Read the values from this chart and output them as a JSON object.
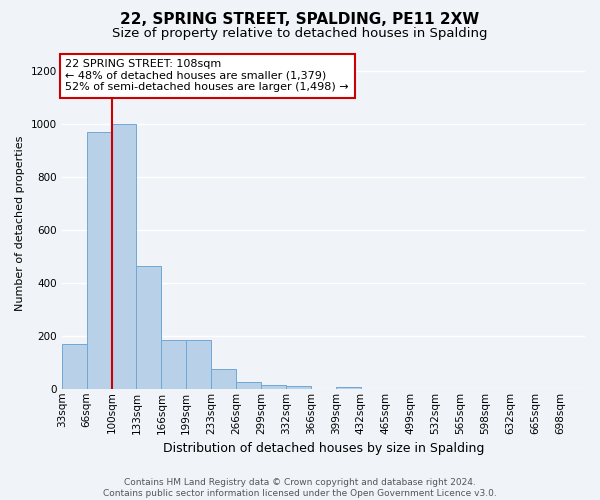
{
  "title": "22, SPRING STREET, SPALDING, PE11 2XW",
  "subtitle": "Size of property relative to detached houses in Spalding",
  "xlabel": "Distribution of detached houses by size in Spalding",
  "ylabel": "Number of detached properties",
  "bin_labels": [
    "33sqm",
    "66sqm",
    "100sqm",
    "133sqm",
    "166sqm",
    "199sqm",
    "233sqm",
    "266sqm",
    "299sqm",
    "332sqm",
    "366sqm",
    "399sqm",
    "432sqm",
    "465sqm",
    "499sqm",
    "532sqm",
    "565sqm",
    "598sqm",
    "632sqm",
    "665sqm",
    "698sqm"
  ],
  "num_bins": 21,
  "bar_heights": [
    170,
    970,
    1000,
    465,
    185,
    185,
    75,
    25,
    15,
    10,
    0,
    5,
    0,
    0,
    0,
    0,
    0,
    0,
    0,
    0,
    0
  ],
  "bar_color": "#b8d0e8",
  "bar_edge_color": "#6fa8d5",
  "red_line_bin": 2,
  "annotation_text": "22 SPRING STREET: 108sqm\n← 48% of detached houses are smaller (1,379)\n52% of semi-detached houses are larger (1,498) →",
  "annotation_box_color": "#ffffff",
  "annotation_box_edge_color": "#cc0000",
  "ylim": [
    0,
    1250
  ],
  "yticks": [
    0,
    200,
    400,
    600,
    800,
    1000,
    1200
  ],
  "footer_text": "Contains HM Land Registry data © Crown copyright and database right 2024.\nContains public sector information licensed under the Open Government Licence v3.0.",
  "bg_color": "#f0f4f8",
  "grid_color": "#ffffff",
  "title_fontsize": 11,
  "subtitle_fontsize": 9.5,
  "ylabel_fontsize": 8,
  "xlabel_fontsize": 9,
  "tick_fontsize": 7.5,
  "annotation_fontsize": 8
}
